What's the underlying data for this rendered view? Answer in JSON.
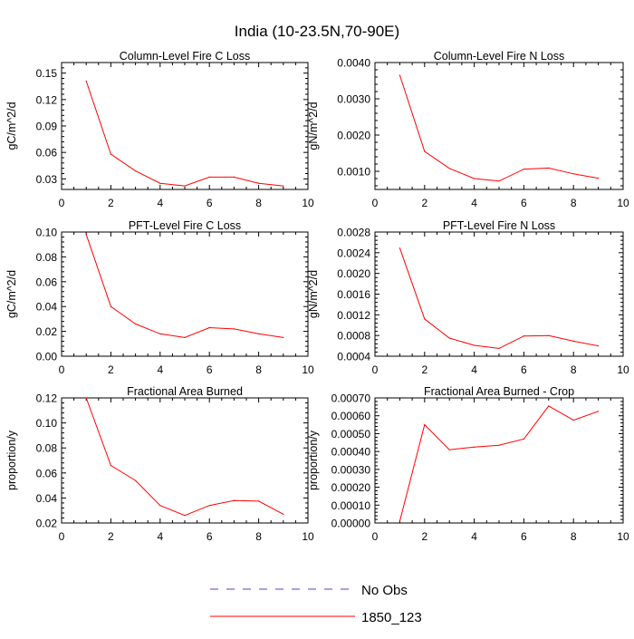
{
  "figure_title": "India (10-23.5N,70-90E)",
  "legend": {
    "entries": [
      {
        "label": "No Obs",
        "color": "#4444cc",
        "style": "dashed"
      },
      {
        "label": "1850_123",
        "color": "#ff0000",
        "style": "solid"
      }
    ]
  },
  "chart_data": [
    {
      "type": "line",
      "title": "Column-Level Fire C Loss",
      "ylabel": "gC/m^2/d",
      "xlabel": "",
      "xlim": [
        0,
        10
      ],
      "ylim": [
        0.018,
        0.162
      ],
      "xticks": [
        0,
        2,
        4,
        6,
        8,
        10
      ],
      "yticks": [
        0.03,
        0.06,
        0.09,
        0.12,
        0.15
      ],
      "ytick_labels": [
        "0.03",
        "0.06",
        "0.09",
        "0.12",
        "0.15"
      ],
      "series": [
        {
          "name": "1850_123",
          "color": "#ff0000",
          "x": [
            1,
            2,
            3,
            4,
            5,
            6,
            7,
            8,
            9
          ],
          "values": [
            0.141,
            0.058,
            0.039,
            0.025,
            0.022,
            0.032,
            0.032,
            0.025,
            0.022
          ]
        }
      ]
    },
    {
      "type": "line",
      "title": "Column-Level Fire N Loss",
      "ylabel": "gN/m^2/d",
      "xlabel": "",
      "xlim": [
        0,
        10
      ],
      "ylim": [
        0.0005,
        0.004
      ],
      "xticks": [
        0,
        2,
        4,
        6,
        8,
        10
      ],
      "yticks": [
        0.001,
        0.002,
        0.003,
        0.004
      ],
      "ytick_labels": [
        "0.0010",
        "0.0020",
        "0.0030",
        "0.0040"
      ],
      "series": [
        {
          "name": "1850_123",
          "color": "#ff0000",
          "x": [
            1,
            2,
            3,
            4,
            5,
            6,
            7,
            8,
            9
          ],
          "values": [
            0.00365,
            0.00155,
            0.00108,
            0.0008,
            0.00073,
            0.00106,
            0.00109,
            0.00093,
            0.00081
          ]
        }
      ]
    },
    {
      "type": "line",
      "title": "PFT-Level Fire C Loss",
      "ylabel": "gC/m^2/d",
      "xlabel": "",
      "xlim": [
        0,
        10
      ],
      "ylim": [
        0,
        0.1
      ],
      "xticks": [
        0,
        2,
        4,
        6,
        8,
        10
      ],
      "yticks": [
        0,
        0.02,
        0.04,
        0.06,
        0.08,
        0.1
      ],
      "ytick_labels": [
        "0.00",
        "0.02",
        "0.04",
        "0.06",
        "0.08",
        "0.10"
      ],
      "series": [
        {
          "name": "1850_123",
          "color": "#ff0000",
          "x": [
            1,
            2,
            3,
            4,
            5,
            6,
            7,
            8,
            9
          ],
          "values": [
            0.098,
            0.04,
            0.026,
            0.018,
            0.015,
            0.023,
            0.022,
            0.018,
            0.015
          ]
        }
      ]
    },
    {
      "type": "line",
      "title": "PFT-Level Fire N Loss",
      "ylabel": "gN/m^2/d",
      "xlabel": "",
      "xlim": [
        0,
        10
      ],
      "ylim": [
        0.0004,
        0.0028
      ],
      "xticks": [
        0,
        2,
        4,
        6,
        8,
        10
      ],
      "yticks": [
        0.0004,
        0.0008,
        0.0012,
        0.0016,
        0.002,
        0.0024,
        0.0028
      ],
      "ytick_labels": [
        "0.0004",
        "0.0008",
        "0.0012",
        "0.0016",
        "0.0020",
        "0.0024",
        "0.0028"
      ],
      "series": [
        {
          "name": "1850_123",
          "color": "#ff0000",
          "x": [
            1,
            2,
            3,
            4,
            5,
            6,
            7,
            8,
            9
          ],
          "values": [
            0.00249,
            0.00112,
            0.00075,
            0.00061,
            0.00055,
            0.00079,
            0.0008,
            0.00069,
            0.0006
          ]
        }
      ]
    },
    {
      "type": "line",
      "title": "Fractional Area Burned",
      "ylabel": "proportion/y",
      "xlabel": "",
      "xlim": [
        0,
        10
      ],
      "ylim": [
        0.02,
        0.12
      ],
      "xticks": [
        0,
        2,
        4,
        6,
        8,
        10
      ],
      "yticks": [
        0.02,
        0.04,
        0.06,
        0.08,
        0.1,
        0.12
      ],
      "ytick_labels": [
        "0.02",
        "0.04",
        "0.06",
        "0.08",
        "0.10",
        "0.12"
      ],
      "series": [
        {
          "name": "1850_123",
          "color": "#ff0000",
          "x": [
            1,
            2,
            3,
            4,
            5,
            6,
            7,
            8,
            9
          ],
          "values": [
            0.12,
            0.066,
            0.054,
            0.034,
            0.026,
            0.034,
            0.038,
            0.0375,
            0.027
          ]
        }
      ]
    },
    {
      "type": "line",
      "title": "Fractional Area Burned - Crop",
      "ylabel": "proportion/y",
      "xlabel": "",
      "xlim": [
        0,
        10
      ],
      "ylim": [
        0,
        0.0007
      ],
      "xticks": [
        0,
        2,
        4,
        6,
        8,
        10
      ],
      "yticks": [
        0,
        0.0001,
        0.0002,
        0.0003,
        0.0004,
        0.0005,
        0.0006,
        0.0007
      ],
      "ytick_labels": [
        "0.00000",
        "0.00010",
        "0.00020",
        "0.00030",
        "0.00040",
        "0.00050",
        "0.00060",
        "0.00070"
      ],
      "series": [
        {
          "name": "1850_123",
          "color": "#ff0000",
          "x": [
            1,
            2,
            3,
            4,
            5,
            6,
            7,
            8,
            9
          ],
          "values": [
            1e-05,
            0.00055,
            0.00041,
            0.000425,
            0.000435,
            0.00047,
            0.000655,
            0.000575,
            0.000625
          ]
        }
      ]
    }
  ]
}
